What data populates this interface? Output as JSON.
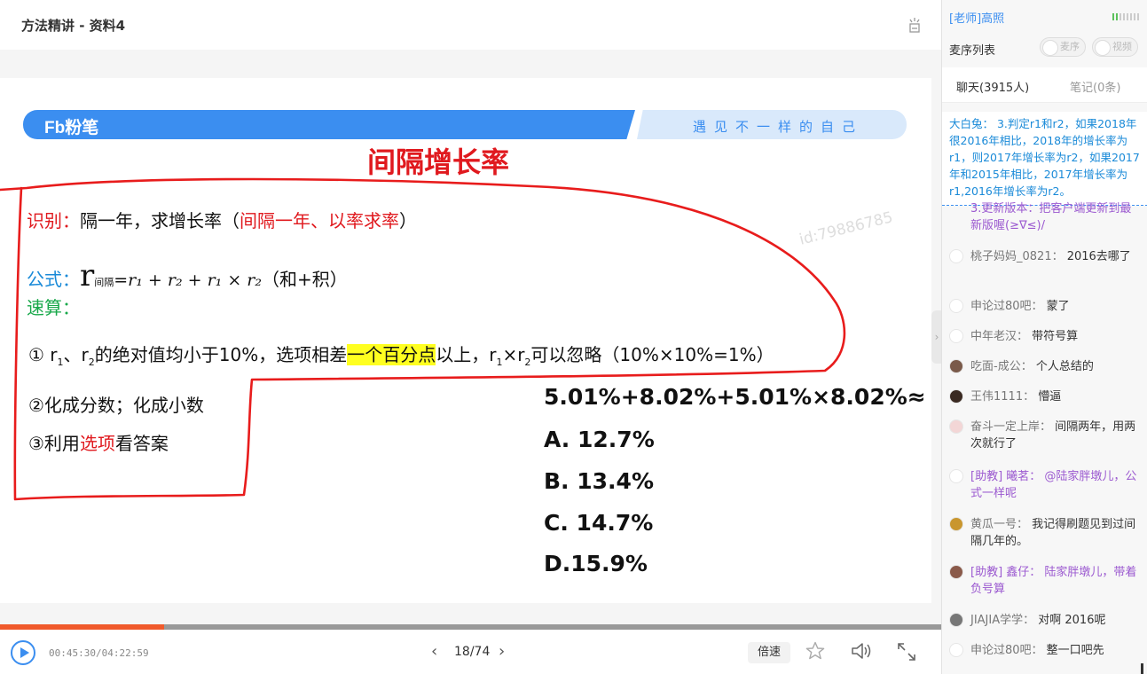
{
  "header": {
    "course_title": "方法精讲 - 资料4",
    "hand_icon": "raise-hand-icon"
  },
  "slide": {
    "brand": "Fb粉笔",
    "slogan": "遇见不一样的自己",
    "heading": "间隔增长率",
    "watermark": "id:79886785",
    "identify": {
      "label": "识别：",
      "text": "隔一年，求增长率（",
      "red": "间隔一年、以率求率",
      "close": "）"
    },
    "formula": {
      "label": "公式：",
      "r": "r",
      "sub": "间隔",
      "expr": "=r₁ + r₂ + r₁ × r₂",
      "note": "（和+积）"
    },
    "quick": {
      "label": "速算："
    },
    "rule1": {
      "prefix": "① r",
      "sub1": "1",
      "mid1": "、r",
      "sub2": "2",
      "mid2": "的绝对值均小于10%，选项相差",
      "highlight": "一个百分点",
      "mid3": "以上，r",
      "sub3": "1",
      "mid4": "×r",
      "sub4": "2",
      "end": "可以忽略（10%×10%=1%）"
    },
    "rule2": "②化成分数；化成小数",
    "rule3": {
      "a": "③利用",
      "red": "选项",
      "b": "看答案"
    },
    "question": "5.01%+8.02%+5.01%×8.02%≈",
    "options": [
      "A. 12.7%",
      "B. 13.4%",
      "C. 14.7%",
      "D.15.9%"
    ]
  },
  "player": {
    "time": "00:45:30/04:22:59",
    "progress_fraction": 0.174,
    "page": "18/74",
    "speed_label": "倍速",
    "prev_icon": "chevron-left-icon",
    "next_icon": "chevron-right-icon"
  },
  "panel": {
    "teacher": "[老师]高照",
    "mic_list": "麦序列表",
    "toggle_mic": "麦序",
    "toggle_video": "视频",
    "tab_chat": "聊天(3915人)",
    "tab_notes": "笔记(0条)",
    "pinned": "大白兔：  3.判定r1和r2，如果2018年很2016年相比，2018年的增长率为r1，则2017年增长率为r2，如果2017年和2015年相比，2017年增长率为r1,2016年增长率为r2。",
    "partial": "3.更新版本：把客户端更新到最新版喔(≥∇≤)/",
    "messages": [
      {
        "sender": "桃子妈妈_0821：",
        "text": " 2016去哪了",
        "avatar": "#ffffff",
        "role": "student"
      },
      {
        "sender": "申论过80吧：",
        "text": " 蒙了",
        "avatar": "#ffffff",
        "role": "student"
      },
      {
        "sender": "中年老汉：",
        "text": " 带符号算",
        "avatar": "#ffffff",
        "role": "student"
      },
      {
        "sender": "吃面-成公：",
        "text": " 个人总结的",
        "avatar": "#7a5a4a",
        "role": "student"
      },
      {
        "sender": "王伟1111：",
        "text": " 懵逼",
        "avatar": "#3a2a22",
        "role": "student"
      },
      {
        "sender": "奋斗一定上岸：",
        "text": " 间隔两年，用两次就行了",
        "avatar": "#f3d6d6",
        "role": "student"
      },
      {
        "sender": "[助教] 曦茗：",
        "text": " @陆家胖墩儿，公式一样呢",
        "avatar": "#ffffff",
        "role": "assistant"
      },
      {
        "sender": "黄瓜一号：",
        "text": " 我记得刷题见到过间隔几年的。",
        "avatar": "#c9962e",
        "role": "student"
      },
      {
        "sender": "[助教] 鑫仔：",
        "text": " 陆家胖墩儿，带着负号算",
        "avatar": "#8a5a4a",
        "role": "assistant"
      },
      {
        "sender": "JIAJIA学学：",
        "text": " 对啊 2016呢",
        "avatar": "#777777",
        "role": "student"
      },
      {
        "sender": "申论过80吧：",
        "text": " 整一口吧先",
        "avatar": "#ffffff",
        "role": "student"
      }
    ]
  }
}
